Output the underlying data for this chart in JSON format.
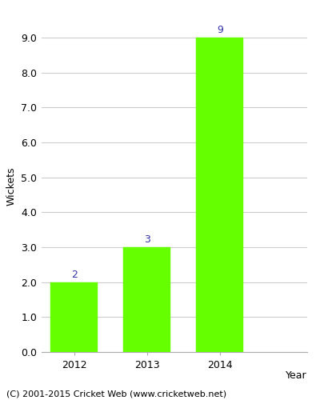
{
  "categories": [
    "2012",
    "2013",
    "2014"
  ],
  "values": [
    2,
    3,
    9
  ],
  "bar_color": "#66ff00",
  "bar_edgecolor": "#66ff00",
  "title": "",
  "xlabel": "Year",
  "ylabel": "Wickets",
  "ylim": [
    0,
    9.5
  ],
  "yticks": [
    0.0,
    1.0,
    2.0,
    3.0,
    4.0,
    5.0,
    6.0,
    7.0,
    8.0,
    9.0
  ],
  "annotation_color": "#3333aa",
  "annotation_fontsize": 9,
  "xlabel_fontsize": 9,
  "ylabel_fontsize": 9,
  "tick_fontsize": 9,
  "footer_text": "(C) 2001-2015 Cricket Web (www.cricketweb.net)",
  "footer_fontsize": 8,
  "grid_color": "#cccccc",
  "background_color": "#ffffff",
  "bar_width": 0.65,
  "xlim": [
    -0.45,
    3.2
  ]
}
